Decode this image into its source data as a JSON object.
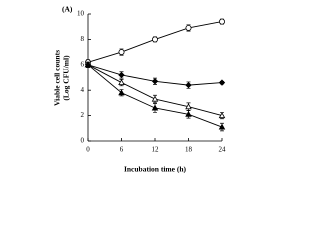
{
  "chart_data": {
    "type": "line",
    "panel_label": "(A)",
    "xlabel": "Incubation time (h)",
    "ylabel": [
      "Viable cell counts",
      "(Log CFU/ml)"
    ],
    "x": [
      0,
      6,
      12,
      18,
      24
    ],
    "xlim": [
      0,
      24
    ],
    "xticks": [
      0,
      6,
      12,
      18,
      24
    ],
    "ylim": [
      0,
      10
    ],
    "yticks": [
      0,
      2,
      4,
      6,
      8,
      10
    ],
    "series": [
      {
        "color": "#000000",
        "marker": "open-circle",
        "values": [
          6.2,
          7.0,
          8.0,
          8.9,
          9.4
        ],
        "errors": [
          0.2,
          0.25,
          0.2,
          0.25,
          0.2
        ]
      },
      {
        "color": "#000000",
        "marker": "filled-diamond",
        "values": [
          6.0,
          5.2,
          4.7,
          4.4,
          4.6
        ],
        "errors": [
          0.2,
          0.25,
          0.25,
          0.25,
          0.1
        ]
      },
      {
        "color": "#000000",
        "marker": "open-triangle",
        "values": [
          6.0,
          4.6,
          3.3,
          2.7,
          2.0
        ],
        "errors": [
          0.2,
          0.25,
          0.3,
          0.3,
          0.25
        ]
      },
      {
        "color": "#000000",
        "marker": "filled-triangle",
        "values": [
          6.0,
          3.8,
          2.6,
          2.1,
          1.1
        ],
        "errors": [
          0.2,
          0.25,
          0.35,
          0.3,
          0.3
        ]
      }
    ]
  }
}
